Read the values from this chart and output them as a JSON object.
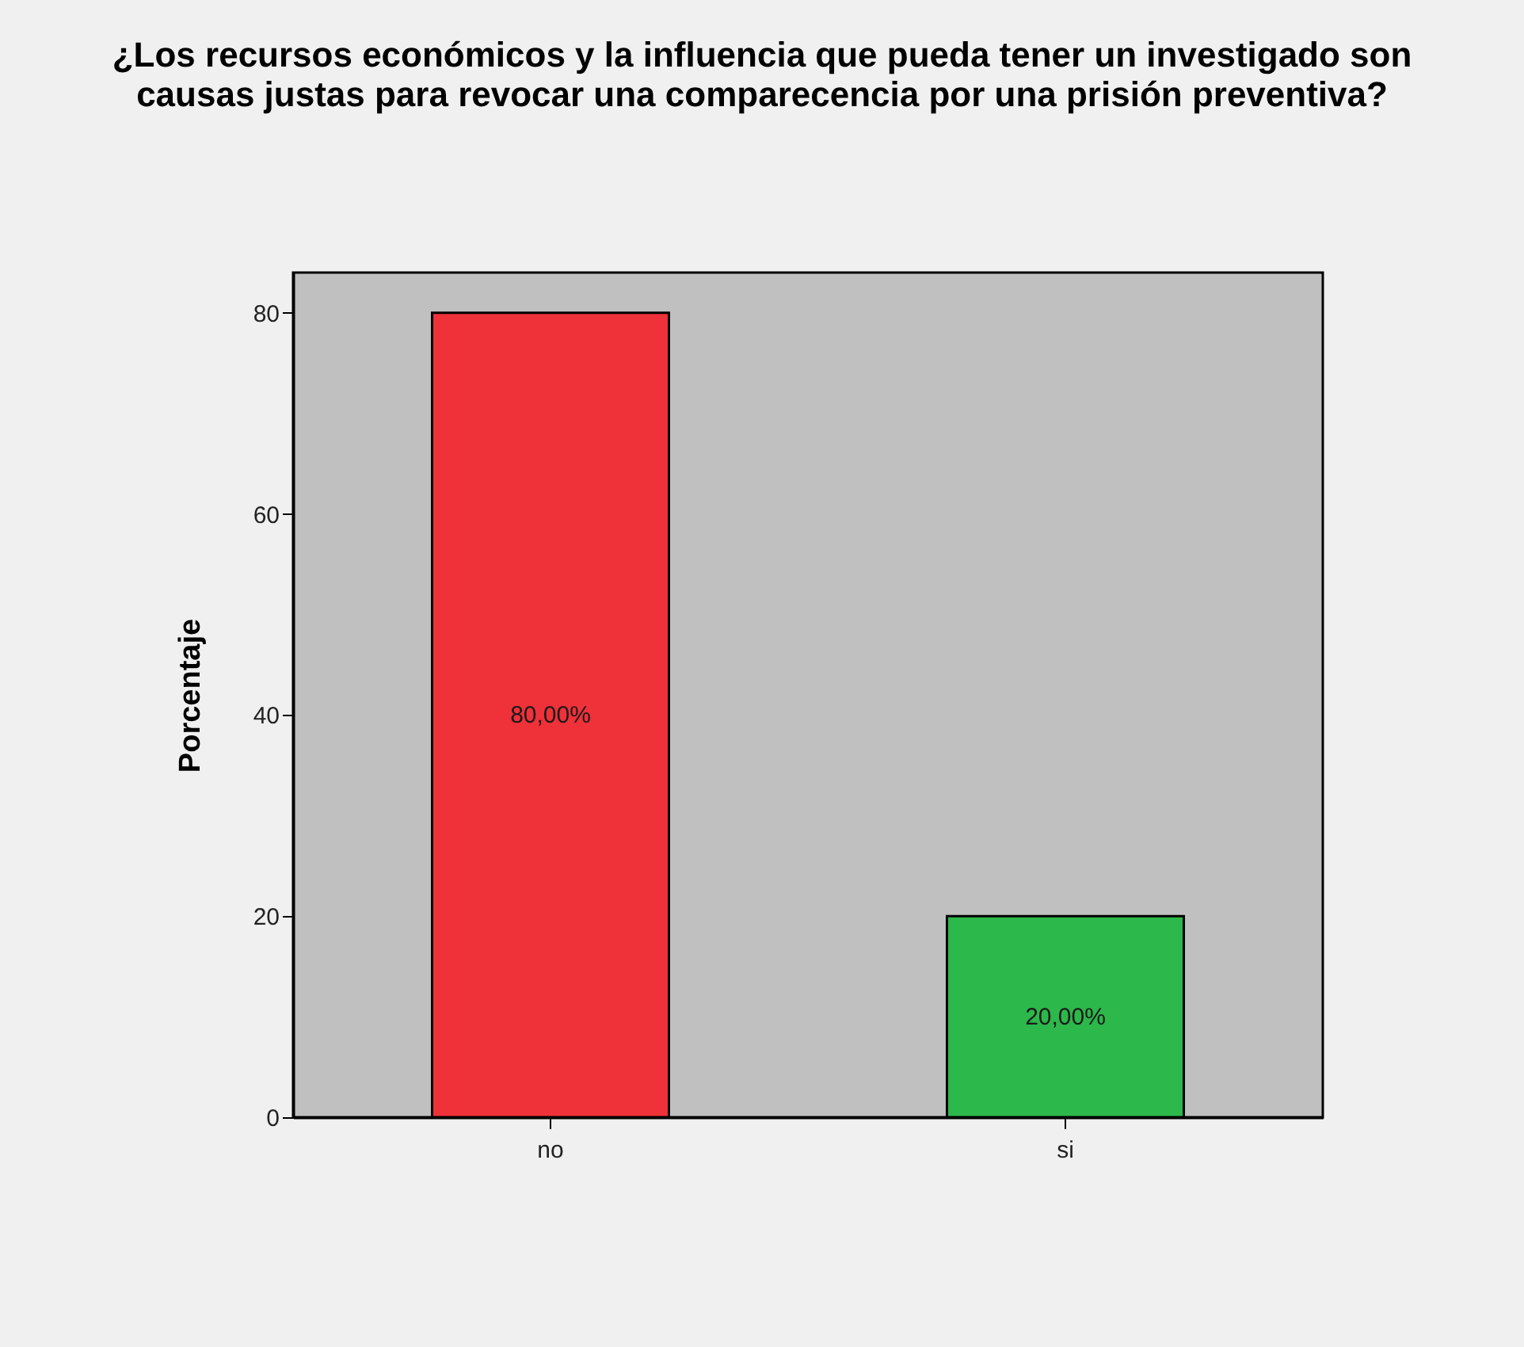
{
  "chart_data": {
    "type": "bar",
    "title": "¿Los recursos económicos y la influencia que pueda tener un investigado son causas justas para revocar una comparecencia por una prisión preventiva?",
    "ylabel": "Porcentaje",
    "categories": [
      "no",
      "si"
    ],
    "values": [
      80,
      20
    ],
    "colors": [
      "#ef3139",
      "#2db84b"
    ],
    "value_labels": [
      "80,00%",
      "20,00%"
    ],
    "ylim": [
      0,
      84
    ],
    "yticks": [
      0,
      20,
      40,
      60,
      80
    ],
    "grid": false,
    "legend": false
  }
}
